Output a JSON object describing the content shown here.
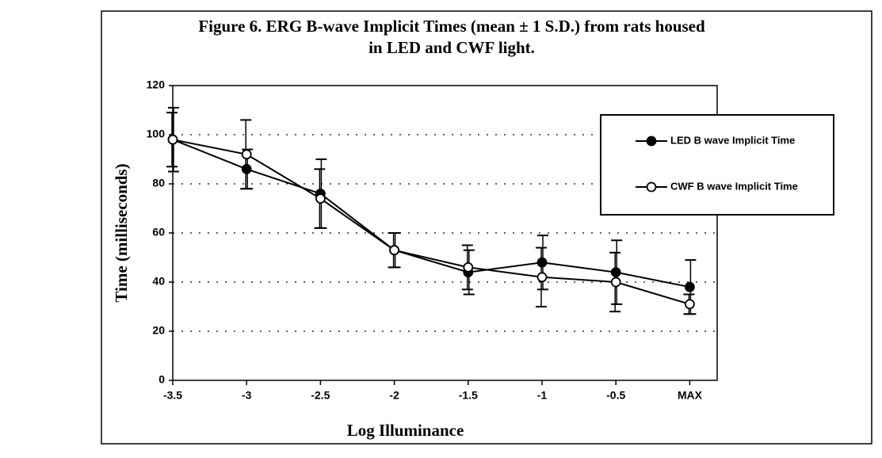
{
  "chart_data": {
    "type": "line",
    "title": "Figure 6. ERG B-wave Implicit Times (mean ± 1 S.D.) from rats housed in LED and CWF light.",
    "x_label": "Log Illuminance",
    "y_label": "Time (milliseconds)",
    "categories": [
      "-3.5",
      "-3",
      "-2.5",
      "-2",
      "-1.5",
      "-1",
      "-0.5",
      "MAX"
    ],
    "series": [
      {
        "name": "LED B wave Implicit Time",
        "color": "#000000",
        "marker_fill": "#000000",
        "values": [
          98,
          86,
          76,
          53,
          44,
          48,
          44,
          38
        ],
        "errors": [
          13,
          8,
          14,
          7,
          9,
          11,
          13,
          11
        ]
      },
      {
        "name": "CWF B wave Implicit Time",
        "color": "#000000",
        "marker_fill": "#ffffff",
        "values": [
          98,
          92,
          74,
          53,
          46,
          42,
          40,
          31
        ],
        "errors": [
          11,
          14,
          12,
          7,
          9,
          12,
          12,
          4
        ]
      }
    ],
    "ylim": [
      0,
      120
    ],
    "yticks": [
      0,
      20,
      40,
      60,
      80,
      100,
      120
    ],
    "grid": true,
    "legend": "right"
  }
}
